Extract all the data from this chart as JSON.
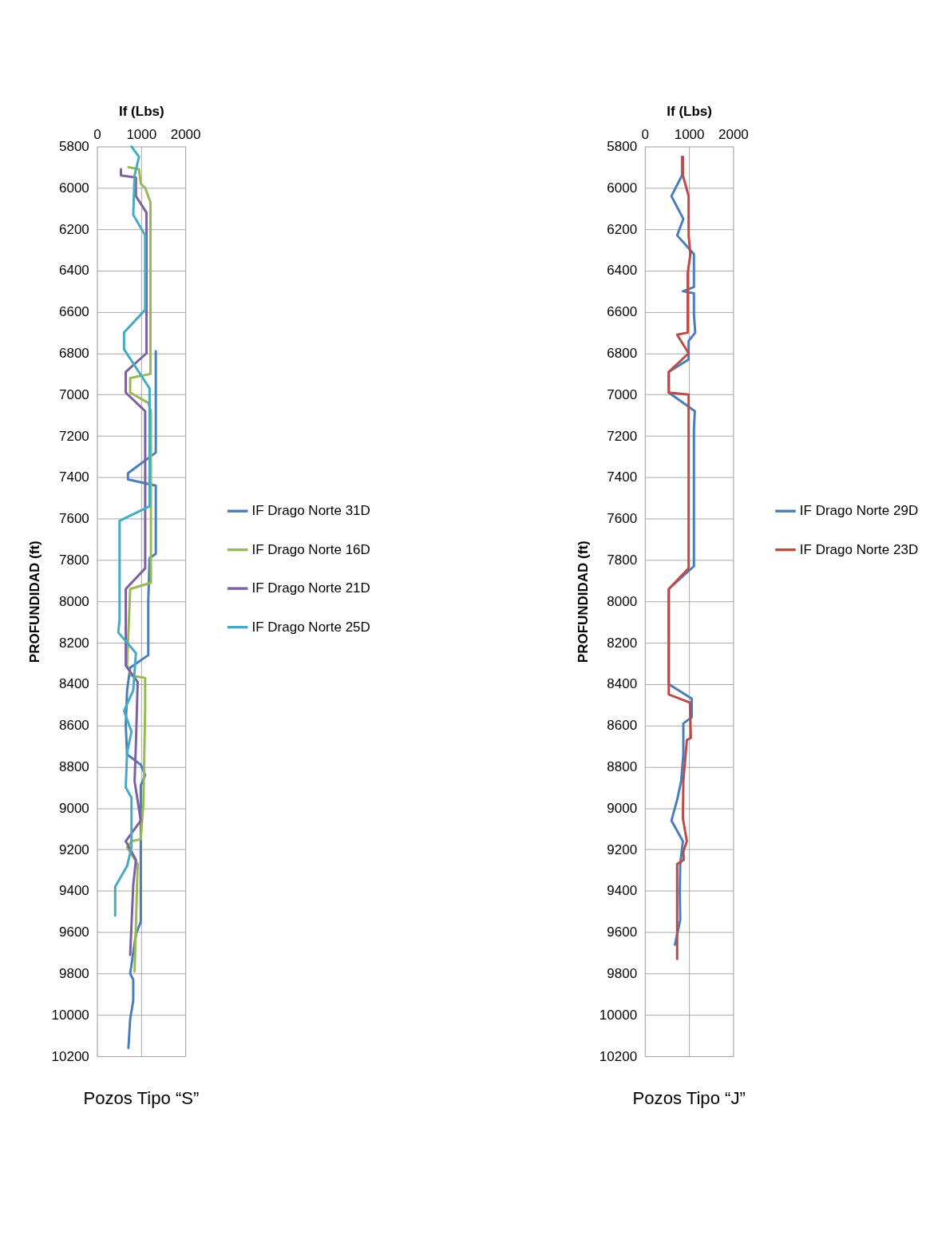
{
  "chart_data": [
    {
      "type": "line",
      "xlabel": "If (Lbs)",
      "ylabel": "PROFUNDIDAD (ft)",
      "xlim": [
        0,
        2000
      ],
      "xticks": [
        0,
        1000,
        2000
      ],
      "ylim": [
        10200,
        5800
      ],
      "yticks": [
        5800,
        6000,
        6200,
        6400,
        6600,
        6800,
        7000,
        7200,
        7400,
        7600,
        7800,
        8000,
        8200,
        8400,
        8600,
        8800,
        9000,
        9200,
        9400,
        9600,
        9800,
        10000,
        10200
      ],
      "grid": true,
      "legend": "right",
      "annotations": [
        "Pozos Tipo “S”"
      ],
      "series": [
        {
          "name": "IF Drago Norte 31D",
          "color": "#4a7ebb",
          "x": [
            1330,
            1330,
            700,
            700,
            1330,
            1330,
            1190,
            1160,
            1160,
            750,
            680,
            650,
            680,
            990,
            1090,
            990,
            990,
            880,
            750,
            820,
            820,
            750,
            710
          ],
          "values": [
            6790,
            7280,
            7380,
            7410,
            7440,
            7770,
            7790,
            8000,
            8260,
            8320,
            8430,
            8600,
            8740,
            8790,
            8840,
            8890,
            9550,
            9610,
            9800,
            9830,
            9930,
            10020,
            10160
          ]
        },
        {
          "name": "IF Drago Norte 16D",
          "color": "#98b954",
          "x": [
            710,
            950,
            990,
            1090,
            1210,
            1210,
            750,
            750,
            1160,
            1220,
            1220,
            750,
            680,
            780,
            1090,
            1090,
            1050,
            990,
            780,
            680,
            920,
            850
          ],
          "values": [
            5900,
            5910,
            5980,
            6000,
            6070,
            6900,
            6920,
            6990,
            7040,
            7080,
            7910,
            7940,
            8310,
            8360,
            8370,
            8510,
            8980,
            9150,
            9160,
            9190,
            9270,
            9790
          ]
        },
        {
          "name": "IF Drago Norte 21D",
          "color": "#7d60a0",
          "x": [
            540,
            540,
            880,
            880,
            1120,
            1120,
            650,
            650,
            1090,
            1090,
            650,
            650,
            920,
            880,
            850,
            990,
            650,
            880,
            820,
            750
          ],
          "values": [
            5910,
            5940,
            5950,
            6040,
            6120,
            6800,
            6890,
            6990,
            7080,
            7840,
            7940,
            8310,
            8390,
            8690,
            8870,
            9060,
            9160,
            9250,
            9370,
            9710
          ]
        },
        {
          "name": "IF Drago Norte 25D",
          "color": "#46aac5",
          "x": [
            780,
            950,
            850,
            820,
            1090,
            1090,
            610,
            610,
            1190,
            1190,
            510,
            510,
            480,
            880,
            820,
            610,
            780,
            680,
            650,
            780,
            780,
            680,
            410,
            410
          ],
          "values": [
            5800,
            5850,
            5940,
            6130,
            6230,
            6590,
            6700,
            6780,
            6970,
            7540,
            7610,
            8090,
            8150,
            8250,
            8430,
            8530,
            8630,
            8730,
            8900,
            8950,
            9190,
            9280,
            9380,
            9520
          ]
        }
      ]
    },
    {
      "type": "line",
      "xlabel": "If (Lbs)",
      "ylabel": "PROFUNDIDAD (ft)",
      "xlim": [
        0,
        2000
      ],
      "xticks": [
        0,
        1000,
        2000
      ],
      "ylim": [
        10200,
        5800
      ],
      "yticks": [
        5800,
        6000,
        6200,
        6400,
        6600,
        6800,
        7000,
        7200,
        7400,
        7600,
        7800,
        8000,
        8200,
        8400,
        8600,
        8800,
        9000,
        9200,
        9400,
        9600,
        9800,
        10000,
        10200
      ],
      "grid": true,
      "legend": "right",
      "annotations": [
        "Pozos Tipo “J”"
      ],
      "series": [
        {
          "name": "IF Drago Norte 29D",
          "color": "#4a7ebb",
          "x": [
            840,
            840,
            600,
            870,
            730,
            1110,
            1110,
            860,
            1110,
            1110,
            1140,
            990,
            990,
            540,
            540,
            1130,
            1110,
            1110,
            540,
            540,
            1060,
            1060,
            870,
            870,
            820,
            730,
            600,
            860,
            800,
            790,
            800,
            680
          ],
          "values": [
            5850,
            5940,
            6040,
            6150,
            6230,
            6320,
            6480,
            6500,
            6510,
            6610,
            6700,
            6740,
            6830,
            6890,
            6990,
            7080,
            7170,
            7830,
            7940,
            8400,
            8470,
            8560,
            8590,
            8740,
            8870,
            8960,
            9060,
            9160,
            9270,
            9410,
            9540,
            9660
          ]
        },
        {
          "name": "IF Drago Norte 23D",
          "color": "#be4b48",
          "x": [
            860,
            860,
            990,
            990,
            1030,
            970,
            970,
            730,
            990,
            540,
            540,
            990,
            990,
            540,
            540,
            1020,
            1040,
            950,
            870,
            860,
            950,
            870,
            880,
            730,
            730
          ],
          "values": [
            5850,
            5940,
            6040,
            6230,
            6320,
            6410,
            6700,
            6710,
            6800,
            6890,
            6990,
            7000,
            7840,
            7940,
            8450,
            8490,
            8660,
            8670,
            8870,
            9050,
            9160,
            9210,
            9250,
            9270,
            9730
          ]
        }
      ]
    }
  ]
}
